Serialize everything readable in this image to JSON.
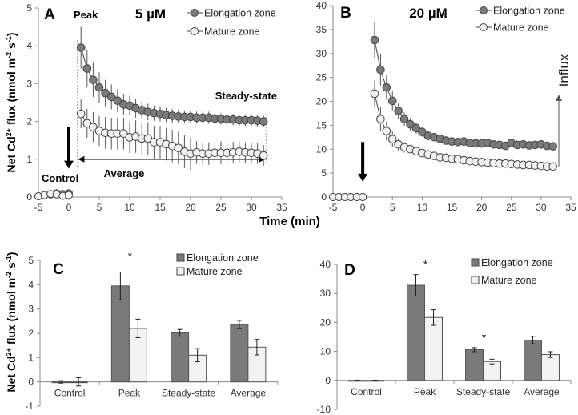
{
  "colors": {
    "elongation": "#7a7a7a",
    "mature": "#f2f2f2",
    "axis": "#888888",
    "stroke": "#333333"
  },
  "shared": {
    "xlabel": "Time (min)",
    "ylabel": {
      "a": "Net Cd",
      "b": "2+",
      "c": " flux (nmol m",
      "d": "-2",
      "e": " s",
      "f": "-1",
      "g": ")"
    },
    "influx": "Influx"
  },
  "chart_data": [
    {
      "id": "A",
      "type": "line",
      "panel": "A",
      "title": "5 µM",
      "xlim": [
        -5,
        35
      ],
      "ylim": [
        0,
        5
      ],
      "xticks": [
        -5,
        0,
        5,
        10,
        15,
        20,
        25,
        30,
        35
      ],
      "yticks": [
        0,
        1,
        2,
        3,
        4,
        5
      ],
      "annotations": {
        "peak": "Peak",
        "steady": "Steady-state",
        "control": "Control",
        "average": "Average"
      },
      "control_x": [
        -5,
        -4,
        -3,
        -2,
        -1,
        0
      ],
      "series": [
        {
          "name": "Elongation zone",
          "control": [
            0.02,
            0.05,
            0.07,
            0.1,
            0.08,
            0.1
          ],
          "values": [
            3.95,
            3.4,
            3.1,
            2.9,
            2.75,
            2.65,
            2.55,
            2.45,
            2.42,
            2.35,
            2.3,
            2.25,
            2.22,
            2.2,
            2.17,
            2.15,
            2.13,
            2.12,
            2.12,
            2.1,
            2.1,
            2.1,
            2.08,
            2.07,
            2.05,
            2.05,
            2.03,
            2.03,
            2.03,
            2.02,
            2.0
          ],
          "err": [
            0.55,
            0.5,
            0.45,
            0.4,
            0.35,
            0.33,
            0.3,
            0.28,
            0.26,
            0.25,
            0.24,
            0.22,
            0.2,
            0.2,
            0.19,
            0.18,
            0.18,
            0.17,
            0.17,
            0.16,
            0.16,
            0.16,
            0.15,
            0.15,
            0.15,
            0.15,
            0.15,
            0.15,
            0.15,
            0.15,
            0.15
          ]
        },
        {
          "name": "Mature zone",
          "control": [
            0.02,
            0.05,
            0.08,
            0.07,
            0.03,
            0.05
          ],
          "values": [
            2.2,
            1.95,
            1.85,
            1.75,
            1.7,
            1.68,
            1.68,
            1.68,
            1.58,
            1.6,
            1.55,
            1.55,
            1.45,
            1.45,
            1.4,
            1.35,
            1.3,
            1.2,
            1.15,
            1.18,
            1.15,
            1.15,
            1.17,
            1.17,
            1.17,
            1.18,
            1.2,
            1.18,
            1.17,
            1.15,
            1.1
          ],
          "err": [
            0.38,
            0.38,
            0.4,
            0.4,
            0.42,
            0.42,
            0.42,
            0.42,
            0.42,
            0.43,
            0.43,
            0.43,
            0.43,
            0.43,
            0.43,
            0.43,
            0.43,
            0.43,
            0.43,
            0.3,
            0.3,
            0.3,
            0.3,
            0.3,
            0.3,
            0.28,
            0.28,
            0.27,
            0.27,
            0.27,
            0.27
          ]
        }
      ]
    },
    {
      "id": "B",
      "type": "line",
      "panel": "B",
      "title": "20 µM",
      "xlim": [
        -5,
        35
      ],
      "ylim": [
        0,
        40
      ],
      "xticks": [
        -5,
        0,
        5,
        10,
        15,
        20,
        25,
        30,
        35
      ],
      "yticks": [
        0,
        5,
        10,
        15,
        20,
        25,
        30,
        35,
        40
      ],
      "control_x": [
        -5,
        -4,
        -3,
        -2,
        -1,
        0
      ],
      "series": [
        {
          "name": "Elongation zone",
          "control": [
            0,
            0,
            0,
            0,
            0,
            0
          ],
          "values": [
            32.8,
            26.6,
            22.9,
            20.1,
            18.0,
            16.3,
            15.2,
            14.4,
            13.6,
            12.8,
            12.5,
            12.2,
            11.8,
            11.6,
            11.5,
            11.6,
            11.3,
            11.2,
            11.2,
            11.3,
            11.0,
            10.9,
            10.7,
            11.3,
            10.9,
            11.0,
            10.8,
            10.9,
            11.0,
            10.7,
            10.6
          ],
          "err": [
            3.7,
            3.3,
            2.5,
            2.0,
            1.6,
            1.4,
            1.3,
            1.1,
            1.0,
            0.9,
            0.8,
            0.8,
            0.8,
            0.8,
            0.8,
            0.8,
            0.8,
            0.8,
            0.8,
            0.8,
            0.7,
            0.7,
            0.7,
            0.7,
            0.7,
            0.7,
            0.7,
            0.7,
            0.7,
            0.7,
            0.7
          ]
        },
        {
          "name": "Mature zone",
          "control": [
            0,
            0,
            0,
            0,
            0,
            0
          ],
          "values": [
            21.6,
            16.3,
            13.8,
            12.1,
            11.0,
            10.4,
            10.0,
            9.6,
            9.2,
            8.9,
            8.6,
            8.3,
            8.2,
            8.0,
            7.9,
            7.7,
            7.5,
            7.4,
            7.3,
            7.2,
            7.1,
            7.0,
            7.0,
            6.9,
            6.8,
            6.7,
            6.7,
            6.6,
            6.5,
            6.4,
            6.4
          ],
          "err": [
            2.7,
            2.5,
            2.0,
            1.6,
            1.3,
            1.1,
            0.9,
            0.8,
            0.8,
            0.7,
            0.7,
            0.7,
            0.6,
            0.6,
            0.6,
            0.6,
            0.6,
            0.6,
            0.6,
            0.6,
            0.6,
            0.6,
            0.6,
            0.6,
            0.6,
            0.6,
            0.6,
            0.6,
            0.6,
            0.6,
            0.6
          ]
        }
      ]
    },
    {
      "id": "C",
      "type": "bar",
      "panel": "C",
      "categories": [
        "Control",
        "Peak",
        "Steady-state",
        "Average"
      ],
      "ylim": [
        -1,
        5
      ],
      "yticks": [
        -1,
        0,
        1,
        2,
        3,
        4,
        5
      ],
      "series": [
        {
          "name": "Elongation zone",
          "values": [
            0,
            3.95,
            2.02,
            2.36
          ],
          "err": [
            0.05,
            0.57,
            0.14,
            0.17
          ]
        },
        {
          "name": "Mature zone",
          "values": [
            0,
            2.2,
            1.1,
            1.43
          ],
          "err": [
            0.17,
            0.38,
            0.27,
            0.32
          ]
        }
      ],
      "significance": [
        "",
        "*",
        "",
        ""
      ]
    },
    {
      "id": "D",
      "type": "bar",
      "panel": "D",
      "categories": [
        "Control",
        "Peak",
        "Steady-state",
        "Average"
      ],
      "ylim": [
        -10,
        40
      ],
      "yticks": [
        -10,
        0,
        10,
        20,
        30,
        40
      ],
      "series": [
        {
          "name": "Elongation zone",
          "values": [
            0,
            32.8,
            10.6,
            13.9
          ],
          "err": [
            0.1,
            3.7,
            0.7,
            1.3
          ]
        },
        {
          "name": "Mature zone",
          "values": [
            0,
            21.7,
            6.5,
            8.9
          ],
          "err": [
            0.1,
            2.7,
            0.8,
            1.0
          ]
        }
      ],
      "significance": [
        "",
        "*",
        "*",
        ""
      ]
    }
  ]
}
